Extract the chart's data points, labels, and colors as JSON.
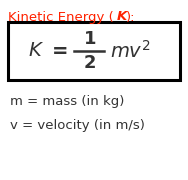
{
  "title_normal": "Kinetic Energy (",
  "title_italic": "K",
  "title_end": "):",
  "title_color": "#ff2200",
  "text_color": "#333333",
  "bg_color": "#ffffff",
  "box_color": "#000000",
  "label1": "m = mass (in kg)",
  "label2": "v = velocity (in m/s)",
  "fig_width": 1.88,
  "fig_height": 1.8,
  "dpi": 100
}
